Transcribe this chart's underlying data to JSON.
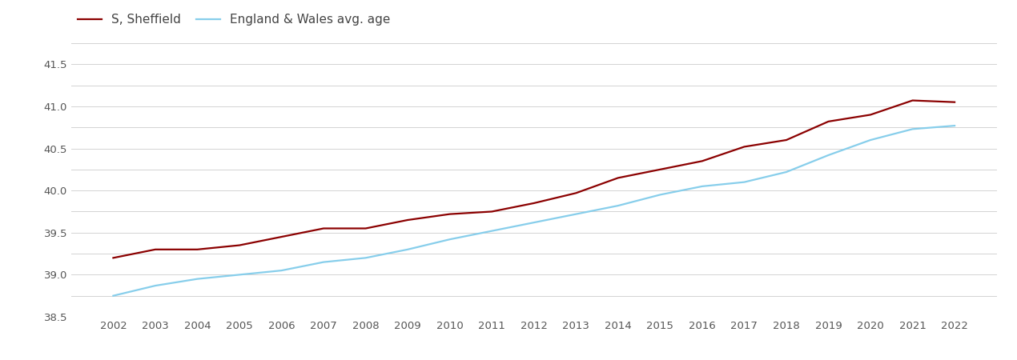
{
  "years": [
    2002,
    2003,
    2004,
    2005,
    2006,
    2007,
    2008,
    2009,
    2010,
    2011,
    2012,
    2013,
    2014,
    2015,
    2016,
    2017,
    2018,
    2019,
    2020,
    2021,
    2022
  ],
  "sheffield": [
    39.2,
    39.3,
    39.3,
    39.35,
    39.45,
    39.55,
    39.55,
    39.65,
    39.72,
    39.75,
    39.85,
    39.97,
    40.15,
    40.25,
    40.35,
    40.52,
    40.6,
    40.82,
    40.9,
    41.07,
    41.05
  ],
  "england_wales": [
    38.75,
    38.87,
    38.95,
    39.0,
    39.05,
    39.15,
    39.2,
    39.3,
    39.42,
    39.52,
    39.62,
    39.72,
    39.82,
    39.95,
    40.05,
    40.1,
    40.22,
    40.42,
    40.6,
    40.73,
    40.77
  ],
  "sheffield_color": "#8b0000",
  "england_wales_color": "#87CEEB",
  "sheffield_label": "S, Sheffield",
  "england_wales_label": "England & Wales avg. age",
  "ylim": [
    38.5,
    41.7
  ],
  "yticks_major": [
    38.5,
    39.0,
    39.5,
    40.0,
    40.5,
    41.0,
    41.5
  ],
  "yticks_minor": [
    38.5,
    38.75,
    39.0,
    39.25,
    39.5,
    39.75,
    40.0,
    40.25,
    40.5,
    40.75,
    41.0,
    41.25,
    41.5,
    41.75
  ],
  "background_color": "#ffffff",
  "grid_color": "#d3d3d3",
  "line_width": 1.6,
  "legend_fontsize": 11,
  "tick_fontsize": 9.5
}
